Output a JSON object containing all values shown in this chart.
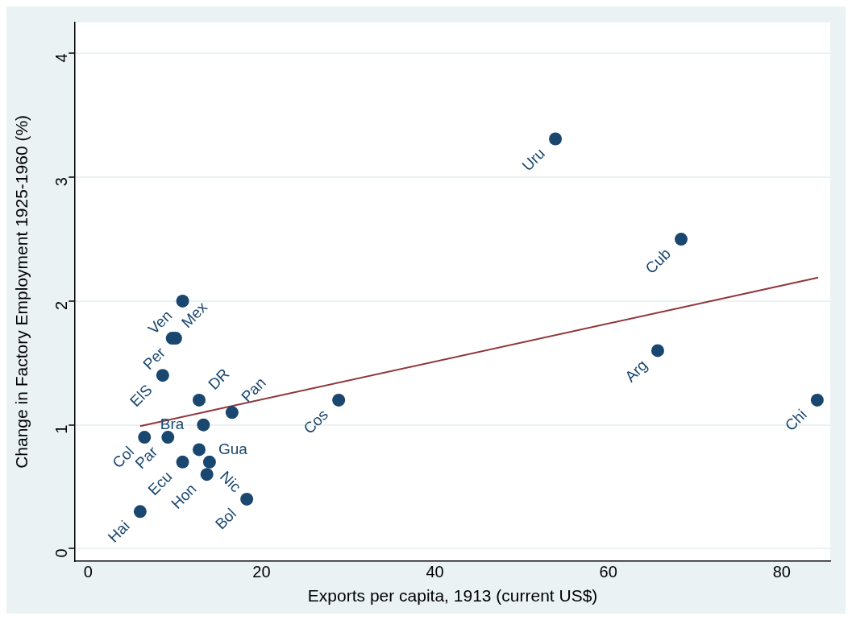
{
  "chart_data": {
    "type": "scatter",
    "xlabel": "Exports per capita, 1913 (current US$)",
    "ylabel": "Change in Factory Employment 1925-1960 (%)",
    "xlim": [
      -1.5,
      85.6
    ],
    "ylim": [
      -0.1,
      4.25
    ],
    "xticks": [
      0,
      20,
      40,
      60,
      80
    ],
    "yticks": [
      0,
      1,
      2,
      3,
      4
    ],
    "grid": "y",
    "legend": false,
    "marker": "circle",
    "series": [
      {
        "type": "scatter",
        "color": "#1a476f",
        "x": [
          53.9,
          68.4,
          65.7,
          84.1,
          28.9,
          10.9,
          10.1,
          9.7,
          8.6,
          12.8,
          16.6,
          13.3,
          6.5,
          9.2,
          12.8,
          10.9,
          14.0,
          13.7,
          18.3,
          6.0
        ],
        "values": [
          3.31,
          2.5,
          1.6,
          1.2,
          1.2,
          2.0,
          1.7,
          1.7,
          1.4,
          1.2,
          1.1,
          1.0,
          0.9,
          0.9,
          0.8,
          0.7,
          0.7,
          0.6,
          0.4,
          0.3
        ]
      },
      {
        "type": "line",
        "color": "#90353b",
        "marker": "none",
        "x": [
          6.0,
          84.2
        ],
        "values": [
          0.99,
          2.19
        ]
      }
    ],
    "annotations": [
      {
        "text": "Uru",
        "x": 53.9,
        "y": 3.31
      },
      {
        "text": "Cub",
        "x": 68.4,
        "y": 2.5
      },
      {
        "text": "Arg",
        "x": 65.7,
        "y": 1.6
      },
      {
        "text": "Chi",
        "x": 84.1,
        "y": 1.2
      },
      {
        "text": "Cos",
        "x": 28.9,
        "y": 1.2
      },
      {
        "text": "Ven",
        "x": 10.9,
        "y": 2.0
      },
      {
        "text": "Per",
        "x": 10.1,
        "y": 1.7
      },
      {
        "text": "Mex",
        "x": 9.7,
        "y": 1.7
      },
      {
        "text": "ElS",
        "x": 8.6,
        "y": 1.4
      },
      {
        "text": "DR",
        "x": 12.8,
        "y": 1.2
      },
      {
        "text": "Pan",
        "x": 16.6,
        "y": 1.1
      },
      {
        "text": "Bra",
        "x": 13.3,
        "y": 1.0
      },
      {
        "text": "Col",
        "x": 6.5,
        "y": 0.9
      },
      {
        "text": "Par",
        "x": 9.2,
        "y": 0.9
      },
      {
        "text": "Gua",
        "x": 12.8,
        "y": 0.8
      },
      {
        "text": "Ecu",
        "x": 10.9,
        "y": 0.7
      },
      {
        "text": "Nic",
        "x": 14.0,
        "y": 0.7
      },
      {
        "text": "Hon",
        "x": 13.7,
        "y": 0.6
      },
      {
        "text": "Bol",
        "x": 18.3,
        "y": 0.4
      },
      {
        "text": "Hai",
        "x": 6.0,
        "y": 0.3
      }
    ]
  }
}
